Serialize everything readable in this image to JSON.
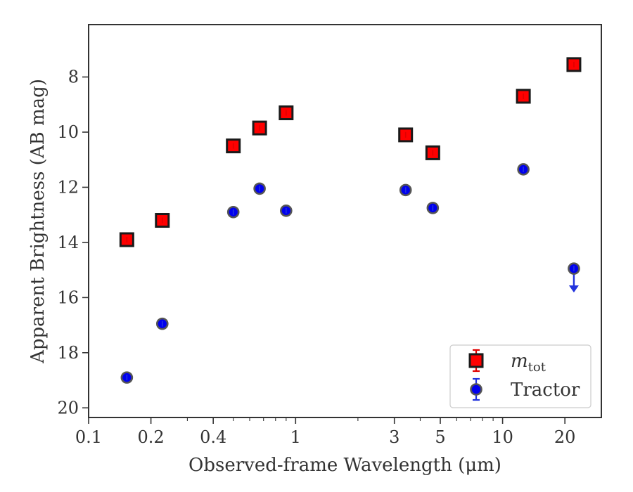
{
  "chart_data": {
    "type": "scatter",
    "title": "",
    "xlabel": "Observed-frame Wavelength (μm)",
    "ylabel": "Apparent Brightness (AB mag)",
    "xscale": "log",
    "yaxis_inverted": true,
    "xlim": [
      0.1,
      30
    ],
    "ylim": [
      20.35,
      6.1
    ],
    "xticks": [
      0.1,
      0.2,
      0.4,
      1,
      3,
      5,
      10,
      20
    ],
    "xtick_labels": [
      "0.1",
      "0.2",
      "0.4",
      "1",
      "3",
      "5",
      "10",
      "20"
    ],
    "yticks": [
      8,
      10,
      12,
      14,
      16,
      18,
      20
    ],
    "ytick_labels": [
      "8",
      "10",
      "12",
      "14",
      "16",
      "18",
      "20"
    ],
    "grid": false,
    "legend_position": "lower-right",
    "series": [
      {
        "name_prefix": "m",
        "name_subscript": "tot",
        "marker": "square",
        "color": "#ff0000",
        "edge_color": "#1a1a1a",
        "errorbar_color": "#e00000",
        "points": [
          {
            "x": 0.153,
            "y": 13.9
          },
          {
            "x": 0.227,
            "y": 13.2
          },
          {
            "x": 0.5,
            "y": 10.5
          },
          {
            "x": 0.67,
            "y": 9.85
          },
          {
            "x": 0.9,
            "y": 9.3
          },
          {
            "x": 3.4,
            "y": 10.1
          },
          {
            "x": 4.6,
            "y": 10.75
          },
          {
            "x": 12.6,
            "y": 8.7
          },
          {
            "x": 22.1,
            "y": 7.55
          }
        ]
      },
      {
        "name": "Tractor",
        "marker": "circle",
        "color": "#0000ee",
        "edge_color": "#555555",
        "errorbar_color": "#2233dd",
        "points": [
          {
            "x": 0.153,
            "y": 18.9
          },
          {
            "x": 0.227,
            "y": 16.95
          },
          {
            "x": 0.5,
            "y": 12.9
          },
          {
            "x": 0.67,
            "y": 12.05
          },
          {
            "x": 0.9,
            "y": 12.85
          },
          {
            "x": 3.4,
            "y": 12.1
          },
          {
            "x": 4.6,
            "y": 12.75
          },
          {
            "x": 12.6,
            "y": 11.35
          },
          {
            "x": 22.1,
            "y": 14.95,
            "upper_limit": true
          }
        ]
      }
    ]
  }
}
